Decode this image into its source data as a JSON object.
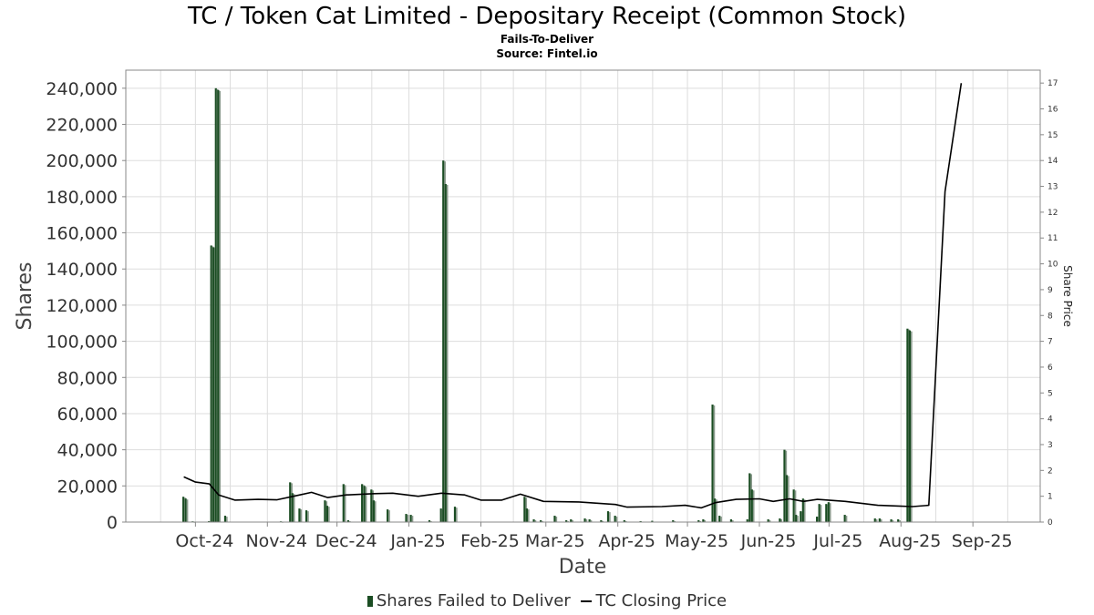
{
  "header": {
    "title": "TC / Token Cat Limited - Depositary Receipt (Common Stock)",
    "subtitle": "Fails-To-Deliver",
    "source": "Source: Fintel.io"
  },
  "legend": {
    "bars_label": "Shares Failed to Deliver",
    "line_label": "TC Closing Price"
  },
  "colors": {
    "bar_dark": "#1b4d23",
    "bar_light": "#8a9a8c",
    "line": "#000000",
    "grid": "#dddddd"
  },
  "chart_data": {
    "type": "bar",
    "xlabel": "Date",
    "ylabel": "Shares",
    "y2label": "Share Price",
    "ylim": [
      0,
      250000
    ],
    "y2lim": [
      0,
      17.5
    ],
    "grid": true,
    "legend_position": "bottom",
    "x_ticks": [
      "Oct-24",
      "Nov-24",
      "Dec-24",
      "Jan-25",
      "Feb-25",
      "Mar-25",
      "Apr-25",
      "May-25",
      "Jun-25",
      "Jul-25",
      "Aug-25",
      "Sep-25"
    ],
    "y_ticks": [
      "0",
      "20,000",
      "40,000",
      "60,000",
      "80,000",
      "100,000",
      "120,000",
      "140,000",
      "160,000",
      "180,000",
      "200,000",
      "220,000",
      "240,000"
    ],
    "y2_ticks": [
      "0",
      "1",
      "2",
      "3",
      "4",
      "5",
      "6",
      "7",
      "8",
      "9",
      "10",
      "11",
      "12",
      "13",
      "14",
      "15",
      "16",
      "17"
    ],
    "series": [
      {
        "name": "Shares Failed to Deliver",
        "type": "bar",
        "points": [
          {
            "date": "2024-09-26",
            "value": 14000
          },
          {
            "date": "2024-09-27",
            "value": 13000
          },
          {
            "date": "2024-09-30",
            "value": 300
          },
          {
            "date": "2024-10-07",
            "value": 500
          },
          {
            "date": "2024-10-08",
            "value": 153000
          },
          {
            "date": "2024-10-09",
            "value": 152000
          },
          {
            "date": "2024-10-10",
            "value": 240000
          },
          {
            "date": "2024-10-11",
            "value": 239000
          },
          {
            "date": "2024-10-14",
            "value": 3500
          },
          {
            "date": "2024-11-07",
            "value": 200
          },
          {
            "date": "2024-11-11",
            "value": 22000
          },
          {
            "date": "2024-11-12",
            "value": 16000
          },
          {
            "date": "2024-11-15",
            "value": 7500
          },
          {
            "date": "2024-11-18",
            "value": 6500
          },
          {
            "date": "2024-11-26",
            "value": 12000
          },
          {
            "date": "2024-11-27",
            "value": 9000
          },
          {
            "date": "2024-12-04",
            "value": 21000
          },
          {
            "date": "2024-12-06",
            "value": 1000
          },
          {
            "date": "2024-12-12",
            "value": 21000
          },
          {
            "date": "2024-12-13",
            "value": 20000
          },
          {
            "date": "2024-12-16",
            "value": 18000
          },
          {
            "date": "2024-12-17",
            "value": 12000
          },
          {
            "date": "2024-12-23",
            "value": 7000
          },
          {
            "date": "2024-12-31",
            "value": 4500
          },
          {
            "date": "2025-01-02",
            "value": 4000
          },
          {
            "date": "2025-01-10",
            "value": 1000
          },
          {
            "date": "2025-01-15",
            "value": 7500
          },
          {
            "date": "2025-01-16",
            "value": 200000
          },
          {
            "date": "2025-01-17",
            "value": 187000
          },
          {
            "date": "2025-01-21",
            "value": 8500
          },
          {
            "date": "2025-02-20",
            "value": 14000
          },
          {
            "date": "2025-02-21",
            "value": 7500
          },
          {
            "date": "2025-02-24",
            "value": 1500
          },
          {
            "date": "2025-02-27",
            "value": 1000
          },
          {
            "date": "2025-03-05",
            "value": 3500
          },
          {
            "date": "2025-03-10",
            "value": 1000
          },
          {
            "date": "2025-03-12",
            "value": 1500
          },
          {
            "date": "2025-03-18",
            "value": 2000
          },
          {
            "date": "2025-03-20",
            "value": 1500
          },
          {
            "date": "2025-03-25",
            "value": 1000
          },
          {
            "date": "2025-03-28",
            "value": 6000
          },
          {
            "date": "2025-03-31",
            "value": 3500
          },
          {
            "date": "2025-04-04",
            "value": 1000
          },
          {
            "date": "2025-04-11",
            "value": 500
          },
          {
            "date": "2025-04-16",
            "value": 700
          },
          {
            "date": "2025-04-25",
            "value": 1000
          },
          {
            "date": "2025-05-06",
            "value": 1000
          },
          {
            "date": "2025-05-08",
            "value": 1500
          },
          {
            "date": "2025-05-12",
            "value": 65000
          },
          {
            "date": "2025-05-13",
            "value": 13000
          },
          {
            "date": "2025-05-15",
            "value": 3500
          },
          {
            "date": "2025-05-20",
            "value": 1500
          },
          {
            "date": "2025-05-27",
            "value": 1500
          },
          {
            "date": "2025-05-28",
            "value": 27000
          },
          {
            "date": "2025-05-29",
            "value": 18000
          },
          {
            "date": "2025-06-05",
            "value": 1500
          },
          {
            "date": "2025-06-10",
            "value": 2000
          },
          {
            "date": "2025-06-12",
            "value": 40000
          },
          {
            "date": "2025-06-13",
            "value": 26000
          },
          {
            "date": "2025-06-16",
            "value": 18000
          },
          {
            "date": "2025-06-17",
            "value": 4000
          },
          {
            "date": "2025-06-19",
            "value": 6000
          },
          {
            "date": "2025-06-20",
            "value": 13000
          },
          {
            "date": "2025-06-26",
            "value": 3000
          },
          {
            "date": "2025-06-27",
            "value": 10000
          },
          {
            "date": "2025-06-30",
            "value": 10000
          },
          {
            "date": "2025-07-01",
            "value": 11000
          },
          {
            "date": "2025-07-08",
            "value": 4000
          },
          {
            "date": "2025-07-21",
            "value": 2000
          },
          {
            "date": "2025-07-23",
            "value": 2000
          },
          {
            "date": "2025-07-28",
            "value": 1500
          },
          {
            "date": "2025-07-31",
            "value": 1500
          },
          {
            "date": "2025-08-04",
            "value": 107000
          },
          {
            "date": "2025-08-05",
            "value": 106000
          }
        ]
      },
      {
        "name": "TC Closing Price",
        "type": "line",
        "points": [
          {
            "date": "2024-09-26",
            "value": 1.75
          },
          {
            "date": "2024-10-01",
            "value": 1.55
          },
          {
            "date": "2024-10-07",
            "value": 1.48
          },
          {
            "date": "2024-10-11",
            "value": 1.05
          },
          {
            "date": "2024-10-18",
            "value": 0.85
          },
          {
            "date": "2024-10-28",
            "value": 0.88
          },
          {
            "date": "2024-11-05",
            "value": 0.86
          },
          {
            "date": "2024-11-15",
            "value": 1.05
          },
          {
            "date": "2024-11-20",
            "value": 1.15
          },
          {
            "date": "2024-11-27",
            "value": 0.95
          },
          {
            "date": "2024-12-05",
            "value": 1.05
          },
          {
            "date": "2024-12-17",
            "value": 1.1
          },
          {
            "date": "2024-12-25",
            "value": 1.12
          },
          {
            "date": "2025-01-05",
            "value": 1.0
          },
          {
            "date": "2025-01-15",
            "value": 1.12
          },
          {
            "date": "2025-01-25",
            "value": 1.05
          },
          {
            "date": "2025-02-01",
            "value": 0.85
          },
          {
            "date": "2025-02-10",
            "value": 0.85
          },
          {
            "date": "2025-02-18",
            "value": 1.08
          },
          {
            "date": "2025-02-28",
            "value": 0.8
          },
          {
            "date": "2025-03-15",
            "value": 0.78
          },
          {
            "date": "2025-03-31",
            "value": 0.68
          },
          {
            "date": "2025-04-05",
            "value": 0.58
          },
          {
            "date": "2025-04-20",
            "value": 0.6
          },
          {
            "date": "2025-04-30",
            "value": 0.65
          },
          {
            "date": "2025-05-07",
            "value": 0.55
          },
          {
            "date": "2025-05-13",
            "value": 0.75
          },
          {
            "date": "2025-05-22",
            "value": 0.88
          },
          {
            "date": "2025-06-01",
            "value": 0.9
          },
          {
            "date": "2025-06-07",
            "value": 0.8
          },
          {
            "date": "2025-06-14",
            "value": 0.9
          },
          {
            "date": "2025-06-20",
            "value": 0.8
          },
          {
            "date": "2025-06-26",
            "value": 0.88
          },
          {
            "date": "2025-07-08",
            "value": 0.8
          },
          {
            "date": "2025-07-22",
            "value": 0.65
          },
          {
            "date": "2025-07-31",
            "value": 0.62
          },
          {
            "date": "2025-08-06",
            "value": 0.6
          },
          {
            "date": "2025-08-13",
            "value": 0.65
          },
          {
            "date": "2025-08-20",
            "value": 12.8
          },
          {
            "date": "2025-08-27",
            "value": 17.0
          }
        ]
      }
    ]
  }
}
